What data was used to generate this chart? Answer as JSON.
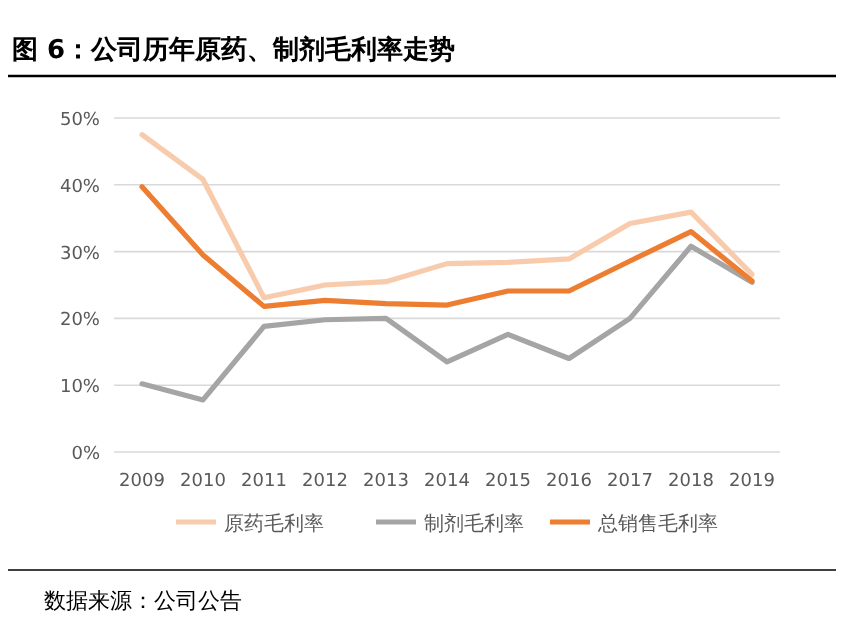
{
  "chart_data": {
    "type": "line",
    "title": "图 6：公司历年原药、制剂毛利率走势",
    "categories": [
      "2009",
      "2010",
      "2011",
      "2012",
      "2013",
      "2014",
      "2015",
      "2016",
      "2017",
      "2018",
      "2019"
    ],
    "series": [
      {
        "name": "原药毛利率",
        "color": "#f8cbad",
        "values": [
          47.5,
          40.8,
          23.1,
          25,
          25.5,
          28.2,
          28.4,
          28.9,
          34.2,
          35.9,
          26.6
        ]
      },
      {
        "name": "制剂毛利率",
        "color": "#a5a5a5",
        "values": [
          10.2,
          7.8,
          18.8,
          19.8,
          20.0,
          13.5,
          17.6,
          14.0,
          20.0,
          30.8,
          25.4
        ]
      },
      {
        "name": "总销售毛利率",
        "color": "#ed7d31",
        "values": [
          39.7,
          29.5,
          21.8,
          22.7,
          22.2,
          22.0,
          24.1,
          24.1,
          28.6,
          33.0,
          25.6
        ]
      }
    ],
    "ylim": [
      0,
      50
    ],
    "yticks": [
      {
        "value": 0,
        "label": "0%"
      },
      {
        "value": 10,
        "label": "10%"
      },
      {
        "value": 20,
        "label": "20%"
      },
      {
        "value": 30,
        "label": "30%"
      },
      {
        "value": 40,
        "label": "40%"
      },
      {
        "value": 50,
        "label": "50%"
      }
    ],
    "grid": "y",
    "legend": "bottom",
    "marker": "none",
    "line_style": "solid",
    "annotations": [
      "数据来源：公司公告"
    ]
  }
}
